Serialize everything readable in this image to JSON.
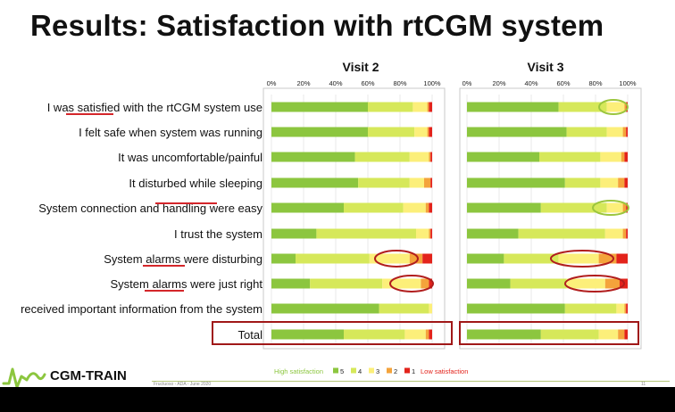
{
  "slide": {
    "title": "Results: Satisfaction with rtCGM system",
    "brand": "CGM-TRAIN",
    "footer_note": "Fructuoso - ADA - June 2020",
    "page_number": "11"
  },
  "chart_data": [
    {
      "type": "bar",
      "stacked": "100%",
      "orientation": "horizontal",
      "title": "Visit 2",
      "xlim": [
        0,
        100
      ],
      "x_ticks": [
        "0%",
        "20%",
        "40%",
        "60%",
        "80%",
        "100%"
      ],
      "categories": [
        "I was satisfied with the rtCGM system use",
        "I felt safe when system was running",
        "It was uncomfortable/painful",
        "It disturbed while sleeping",
        "System connection and handling were easy",
        "I trust the system",
        "System alarms were disturbing",
        "System alarms were just right",
        "received important information from the system",
        "Total"
      ],
      "series": [
        {
          "name": "5",
          "values": [
            60,
            60,
            52,
            54,
            45,
            28,
            15,
            24,
            67,
            45
          ]
        },
        {
          "name": "4",
          "values": [
            28,
            29,
            34,
            32,
            37,
            62,
            46,
            45,
            31,
            38
          ]
        },
        {
          "name": "3",
          "values": [
            9,
            8,
            12,
            9,
            14,
            8,
            25,
            24,
            2,
            13
          ]
        },
        {
          "name": "2",
          "values": [
            1,
            1,
            1,
            4,
            2,
            1,
            8,
            5,
            0,
            2
          ]
        },
        {
          "name": "1",
          "values": [
            2,
            2,
            1,
            1,
            2,
            1,
            6,
            2,
            0,
            2
          ]
        }
      ]
    },
    {
      "type": "bar",
      "stacked": "100%",
      "orientation": "horizontal",
      "title": "Visit 3",
      "xlim": [
        0,
        100
      ],
      "x_ticks": [
        "0%",
        "20%",
        "40%",
        "60%",
        "80%",
        "100%"
      ],
      "categories": [
        "I was satisfied with the rtCGM system use",
        "I felt safe when system was running",
        "It was uncomfortable/painful",
        "It disturbed while sleeping",
        "System connection and handling were easy",
        "I trust the system",
        "System alarms were disturbing",
        "System alarms were just right",
        "received important information from the system",
        "Total"
      ],
      "series": [
        {
          "name": "5",
          "values": [
            57,
            62,
            45,
            61,
            46,
            32,
            23,
            27,
            61,
            46
          ]
        },
        {
          "name": "4",
          "values": [
            30,
            25,
            38,
            22,
            41,
            54,
            34,
            35,
            32,
            36
          ]
        },
        {
          "name": "3",
          "values": [
            11,
            10,
            13,
            11,
            10,
            11,
            25,
            24,
            5,
            12
          ]
        },
        {
          "name": "2",
          "values": [
            1,
            2,
            2,
            4,
            2,
            2,
            11,
            9,
            1,
            4
          ]
        },
        {
          "name": "1",
          "values": [
            1,
            1,
            2,
            2,
            1,
            1,
            7,
            5,
            1,
            2
          ]
        }
      ]
    }
  ],
  "legend": {
    "high_label": "High satisfaction",
    "low_label": "Low satisfaction",
    "items": [
      {
        "label": "5",
        "color": "#8cc63f"
      },
      {
        "label": "4",
        "color": "#d6e85a"
      },
      {
        "label": "3",
        "color": "#fcef7a"
      },
      {
        "label": "2",
        "color": "#f4a33b"
      },
      {
        "label": "1",
        "color": "#e3231b"
      }
    ]
  },
  "colors": {
    "series": [
      "#8cc63f",
      "#d6e85a",
      "#fcef7a",
      "#f4a33b",
      "#e3231b"
    ],
    "highlight_box": "#a01818",
    "underline": "#d4262a",
    "ellipse_red": "#b11d1d",
    "ellipse_green": "#9bc53d"
  },
  "annotations": {
    "underlined_words": [
      "satisfied",
      "handling",
      "alarms",
      "alarms"
    ],
    "total_row_boxed": true,
    "ellipses": [
      {
        "chart": 0,
        "row": "System alarms were disturbing",
        "color": "red"
      },
      {
        "chart": 0,
        "row": "System alarms were just right",
        "color": "red"
      },
      {
        "chart": 1,
        "row": "I was satisfied with the rtCGM system use",
        "color": "green"
      },
      {
        "chart": 1,
        "row": "System connection and handling were easy",
        "color": "green"
      },
      {
        "chart": 1,
        "row": "System alarms were disturbing",
        "color": "red"
      },
      {
        "chart": 1,
        "row": "System alarms were just right",
        "color": "red"
      }
    ]
  }
}
